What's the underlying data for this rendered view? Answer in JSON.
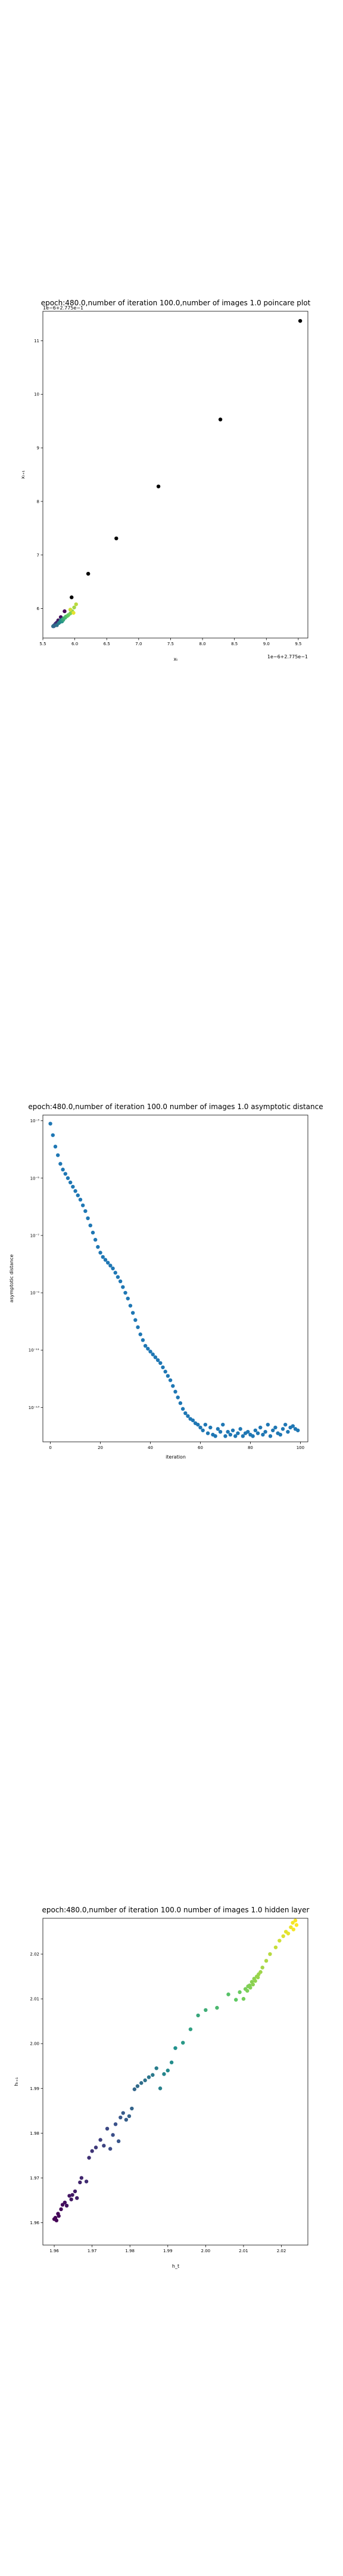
{
  "chart_data": [
    {
      "type": "scatter",
      "title": "epoch:480.0,number of iteration 100.0,number of images 1.0 poincare plot",
      "xlabel": "xₜ",
      "ylabel": "xₜ₊₁",
      "x_offset_label": "1e−6+2.775e−1",
      "y_offset_label": "1e−6+2.775e−1",
      "xlim": [
        5.5,
        9.65
      ],
      "ylim": [
        5.45,
        11.55
      ],
      "xticks": [
        "5.5",
        "6.0",
        "6.5",
        "7.0",
        "7.5",
        "8.0",
        "8.5",
        "9.0",
        "9.5"
      ],
      "yticks": [
        "6",
        "7",
        "8",
        "9",
        "10",
        "11"
      ],
      "colormap": [
        "#440154",
        "#3b528b",
        "#21918c",
        "#5ec962",
        "#fde725"
      ],
      "points": [
        [
          9.53,
          11.37
        ],
        [
          8.28,
          9.53
        ],
        [
          7.31,
          8.28
        ],
        [
          6.65,
          7.31
        ],
        [
          6.21,
          6.65
        ],
        [
          5.95,
          6.21
        ],
        [
          5.84,
          5.95
        ],
        [
          5.78,
          5.84
        ],
        [
          5.74,
          5.78
        ],
        [
          5.72,
          5.74
        ],
        [
          5.7,
          5.72
        ],
        [
          5.69,
          5.7
        ],
        [
          5.68,
          5.69
        ],
        [
          5.68,
          5.68
        ],
        [
          5.67,
          5.68
        ],
        [
          5.67,
          5.67
        ],
        [
          5.66,
          5.67
        ],
        [
          5.72,
          5.69
        ],
        [
          5.75,
          5.73
        ],
        [
          5.77,
          5.75
        ],
        [
          5.78,
          5.78
        ],
        [
          5.8,
          5.76
        ],
        [
          5.81,
          5.8
        ],
        [
          5.82,
          5.79
        ],
        [
          5.83,
          5.82
        ],
        [
          5.85,
          5.83
        ],
        [
          5.86,
          5.85
        ],
        [
          5.88,
          5.86
        ],
        [
          5.9,
          5.88
        ],
        [
          5.93,
          5.91
        ],
        [
          5.96,
          5.95
        ],
        [
          5.99,
          6.02
        ],
        [
          6.02,
          6.08
        ],
        [
          5.93,
          5.98
        ],
        [
          5.98,
          5.92
        ]
      ]
    },
    {
      "type": "line",
      "title": "epoch:480.0,number of iteration 100.0  number of images 1.0 asymptotic distance",
      "xlabel": "iteration",
      "ylabel": "asymptotic distance",
      "log_y": true,
      "xlim": [
        -3,
        103
      ],
      "ylim_exp": [
        -14.2,
        -2.8
      ],
      "xticks": [
        "0",
        "20",
        "40",
        "60",
        "80",
        "100"
      ],
      "xtick_values": [
        0,
        20,
        40,
        60,
        80,
        100
      ],
      "yticks": [
        "10⁻³",
        "10⁻⁵",
        "10⁻⁷",
        "10⁻⁹",
        "10⁻¹¹",
        "10⁻¹³"
      ],
      "ytick_values": [
        -3,
        -5,
        -7,
        -9,
        -11,
        -13
      ],
      "marker_color": "#1f77b4",
      "log10_y": [
        -3.1,
        -3.5,
        -3.9,
        -4.2,
        -4.5,
        -4.7,
        -4.85,
        -5.0,
        -5.15,
        -5.3,
        -5.45,
        -5.6,
        -5.75,
        -5.95,
        -6.15,
        -6.4,
        -6.65,
        -6.9,
        -7.15,
        -7.4,
        -7.6,
        -7.75,
        -7.85,
        -7.95,
        -8.05,
        -8.15,
        -8.3,
        -8.45,
        -8.6,
        -8.8,
        -9.0,
        -9.2,
        -9.45,
        -9.7,
        -9.95,
        -10.2,
        -10.45,
        -10.65,
        -10.85,
        -10.95,
        -11.05,
        -11.15,
        -11.25,
        -11.35,
        -11.45,
        -11.6,
        -11.75,
        -11.9,
        -12.05,
        -12.25,
        -12.45,
        -12.65,
        -12.85,
        -13.05,
        -13.2,
        -13.3,
        -13.4,
        -13.45,
        -13.55,
        -13.6,
        -13.7,
        -13.8,
        -13.6,
        -13.9,
        -13.7,
        -13.95,
        -14.0,
        -13.75,
        -13.85,
        -13.6,
        -14.0,
        -13.85,
        -13.95,
        -13.8,
        -14.0,
        -13.9,
        -13.75,
        -14.0,
        -13.9,
        -13.85,
        -13.95,
        -14.0,
        -13.8,
        -13.9,
        -13.7,
        -13.95,
        -13.85,
        -13.6,
        -14.0,
        -13.8,
        -13.7,
        -13.9,
        -13.95,
        -13.75,
        -13.6,
        -13.85,
        -13.7,
        -13.65,
        -13.75,
        -13.8
      ]
    },
    {
      "type": "scatter",
      "title": "epoch:480.0,number of iteration 100.0  number of images 1.0 hidden layer",
      "xlabel": "h_t",
      "ylabel": "hₜ₊₁",
      "xlim": [
        1.957,
        2.027
      ],
      "ylim": [
        1.955,
        2.028
      ],
      "xticks": [
        "1.96",
        "1.97",
        "1.98",
        "1.99",
        "2.00",
        "2.01",
        "2.02"
      ],
      "xtick_values": [
        1.96,
        1.97,
        1.98,
        1.99,
        2.0,
        2.01,
        2.02
      ],
      "yticks": [
        "1.96",
        "1.97",
        "1.98",
        "1.99",
        "2.00",
        "2.01",
        "2.02"
      ],
      "ytick_values": [
        1.96,
        1.97,
        1.98,
        1.99,
        2.0,
        2.01,
        2.02
      ],
      "colormap": [
        "#440154",
        "#3b528b",
        "#21918c",
        "#5ec962",
        "#fde725"
      ],
      "points": [
        [
          1.96,
          1.9608
        ],
        [
          1.9603,
          1.9611
        ],
        [
          1.9606,
          1.9605
        ],
        [
          1.961,
          1.962
        ],
        [
          1.9612,
          1.9615
        ],
        [
          1.9618,
          1.963
        ],
        [
          1.9622,
          1.964
        ],
        [
          1.9628,
          1.9645
        ],
        [
          1.9633,
          1.9638
        ],
        [
          1.964,
          1.966
        ],
        [
          1.9645,
          1.9652
        ],
        [
          1.9648,
          1.9662
        ],
        [
          1.9655,
          1.967
        ],
        [
          1.966,
          1.9655
        ],
        [
          1.9668,
          1.969
        ],
        [
          1.9672,
          1.97
        ],
        [
          1.9685,
          1.9692
        ],
        [
          1.9692,
          1.9745
        ],
        [
          1.97,
          1.976
        ],
        [
          1.971,
          1.9768
        ],
        [
          1.9722,
          1.9785
        ],
        [
          1.9731,
          1.9772
        ],
        [
          1.974,
          1.981
        ],
        [
          1.9748,
          1.9765
        ],
        [
          1.9755,
          1.9796
        ],
        [
          1.9762,
          1.982
        ],
        [
          1.977,
          1.9782
        ],
        [
          1.9775,
          1.9835
        ],
        [
          1.9782,
          1.9845
        ],
        [
          1.979,
          1.983
        ],
        [
          1.9798,
          1.9838
        ],
        [
          1.9805,
          1.9855
        ],
        [
          1.9812,
          1.9898
        ],
        [
          1.982,
          1.9905
        ],
        [
          1.983,
          1.9912
        ],
        [
          1.984,
          1.9918
        ],
        [
          1.985,
          1.9925
        ],
        [
          1.986,
          1.993
        ],
        [
          1.987,
          1.9945
        ],
        [
          1.988,
          1.99
        ],
        [
          1.989,
          1.9932
        ],
        [
          1.99,
          1.994
        ],
        [
          1.991,
          1.9958
        ],
        [
          1.992,
          1.999
        ],
        [
          1.994,
          2.0002
        ],
        [
          1.996,
          2.0032
        ],
        [
          1.998,
          2.0063
        ],
        [
          2.0,
          2.0075
        ],
        [
          2.003,
          2.008
        ],
        [
          2.006,
          2.011
        ],
        [
          2.008,
          2.0098
        ],
        [
          2.009,
          2.0115
        ],
        [
          2.01,
          2.01
        ],
        [
          2.0105,
          2.0122
        ],
        [
          2.011,
          2.0118
        ],
        [
          2.0112,
          2.0128
        ],
        [
          2.0116,
          2.013
        ],
        [
          2.0118,
          2.0125
        ],
        [
          2.0122,
          2.0138
        ],
        [
          2.0125,
          2.0132
        ],
        [
          2.0128,
          2.0145
        ],
        [
          2.0131,
          2.014
        ],
        [
          2.0135,
          2.015
        ],
        [
          2.0138,
          2.0148
        ],
        [
          2.014,
          2.0155
        ],
        [
          2.0145,
          2.016
        ],
        [
          2.015,
          2.017
        ],
        [
          2.016,
          2.0185
        ],
        [
          2.017,
          2.02
        ],
        [
          2.0185,
          2.0215
        ],
        [
          2.0195,
          2.023
        ],
        [
          2.0205,
          2.024
        ],
        [
          2.0212,
          2.025
        ],
        [
          2.0218,
          2.0246
        ],
        [
          2.0225,
          2.026
        ],
        [
          2.023,
          2.027
        ],
        [
          2.0232,
          2.0255
        ],
        [
          2.0237,
          2.0275
        ],
        [
          2.024,
          2.0265
        ]
      ]
    }
  ]
}
